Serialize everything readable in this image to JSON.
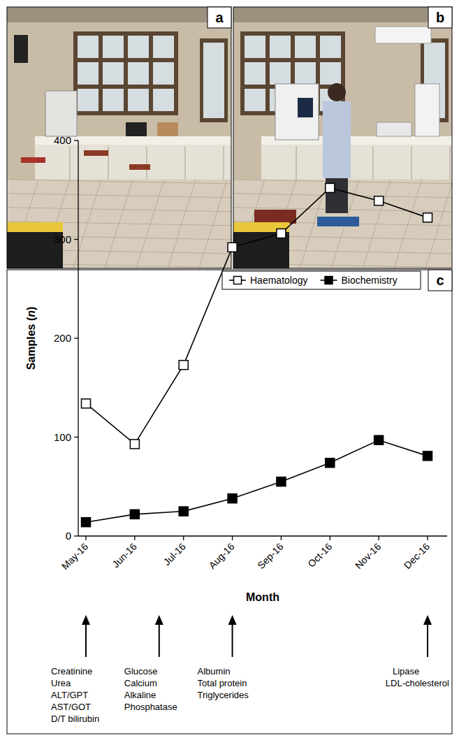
{
  "panel_labels": [
    "a",
    "b",
    "c"
  ],
  "chart_data": {
    "type": "line",
    "x_label": "Month",
    "y_label": "Samples (n)",
    "categories": [
      "May-16",
      "Jun-16",
      "Jul-16",
      "Aug-16",
      "Sep-16",
      "Oct-16",
      "Nov-16",
      "Dec-16"
    ],
    "series": [
      {
        "name": "Haematology",
        "color": "#000000",
        "marker": "square-open",
        "line_style": "solid",
        "values": [
          134,
          93,
          173,
          292,
          306,
          352,
          339,
          322
        ]
      },
      {
        "name": "Biochemistry",
        "color": "#000000",
        "marker": "square",
        "line_style": "solid",
        "values": [
          14,
          22,
          25,
          38,
          55,
          74,
          97,
          81
        ]
      }
    ],
    "ylim": [
      0,
      400
    ],
    "yticks": [
      0,
      100,
      200,
      300,
      400
    ],
    "grid": false,
    "legend": "top-right",
    "annotations": [
      {
        "position": 0,
        "lines": [
          "Creatinine",
          "Urea",
          "ALT/GPT",
          "AST/GOT",
          "D/T bilirubin"
        ]
      },
      {
        "position": 1.5,
        "lines": [
          "Glucose",
          "Calcium",
          "Alkaline",
          "Phosphatase"
        ]
      },
      {
        "position": 3,
        "lines": [
          "Albumin",
          "Total protein",
          "Triglycerides"
        ]
      },
      {
        "position": 7,
        "lines": [
          "Lipase",
          "LDL-cholesterol"
        ]
      }
    ]
  }
}
